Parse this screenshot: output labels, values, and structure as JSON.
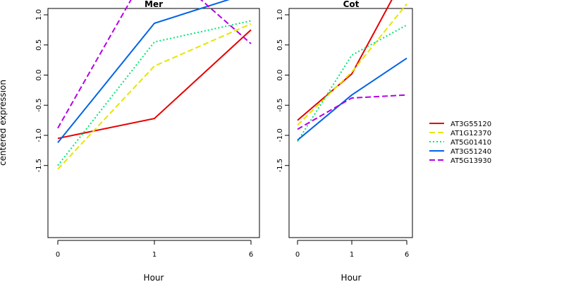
{
  "chart_data": [
    {
      "type": "line",
      "title": "Mer",
      "xlabel": "Hour",
      "ylabel": "centered expression",
      "categories": [
        "0",
        "1",
        "6"
      ],
      "ylim": [
        -1.6,
        2.0
      ],
      "yticks": [
        "-1.5",
        "-1.0",
        "-0.5",
        "0.0",
        "0.5",
        "1.0",
        "1.5",
        "2.0"
      ],
      "series": [
        {
          "name": "AT3G55120",
          "color": "#e60000",
          "dash": "solid",
          "values": [
            -1.05,
            -0.72,
            0.75
          ]
        },
        {
          "name": "AT1G12370",
          "color": "#e6e600",
          "dash": "dashed",
          "values": [
            -1.56,
            0.15,
            0.85
          ]
        },
        {
          "name": "AT5G01410",
          "color": "#00e673",
          "dash": "dotted",
          "values": [
            -1.5,
            0.55,
            0.9
          ]
        },
        {
          "name": "AT3G51240",
          "color": "#0064e6",
          "dash": "solid",
          "values": [
            -1.12,
            0.86,
            1.37
          ]
        },
        {
          "name": "AT5G13930",
          "color": "#b400e6",
          "dash": "dashed",
          "values": [
            -0.88,
            1.93,
            0.52
          ]
        }
      ]
    },
    {
      "type": "line",
      "title": "Cot",
      "xlabel": "Hour",
      "ylabel": "",
      "categories": [
        "0",
        "1",
        "6"
      ],
      "ylim": [
        -1.6,
        2.0
      ],
      "yticks": [
        "-1.5",
        "-1.0",
        "-0.5",
        "0.0",
        "0.5",
        "1.0",
        "1.5",
        "2.0"
      ],
      "series": [
        {
          "name": "AT3G55120",
          "color": "#e60000",
          "dash": "solid",
          "values": [
            -0.75,
            0.02,
            1.71
          ]
        },
        {
          "name": "AT1G12370",
          "color": "#e6e600",
          "dash": "dashed",
          "values": [
            -0.83,
            0.05,
            1.18
          ]
        },
        {
          "name": "AT5G01410",
          "color": "#00e673",
          "dash": "dotted",
          "values": [
            -1.1,
            0.33,
            0.83
          ]
        },
        {
          "name": "AT3G51240",
          "color": "#0064e6",
          "dash": "solid",
          "values": [
            -1.08,
            -0.33,
            0.28
          ]
        },
        {
          "name": "AT5G13930",
          "color": "#b400e6",
          "dash": "dashed",
          "values": [
            -0.9,
            -0.38,
            -0.33
          ]
        }
      ]
    }
  ],
  "legend": {
    "placement": "right",
    "entries": [
      {
        "name": "AT3G55120",
        "color": "#e60000",
        "dash": "solid"
      },
      {
        "name": "AT1G12370",
        "color": "#e6e600",
        "dash": "dashed"
      },
      {
        "name": "AT5G01410",
        "color": "#00e673",
        "dash": "dotted"
      },
      {
        "name": "AT3G51240",
        "color": "#0064e6",
        "dash": "solid"
      },
      {
        "name": "AT5G13930",
        "color": "#b400e6",
        "dash": "dashed"
      }
    ]
  }
}
